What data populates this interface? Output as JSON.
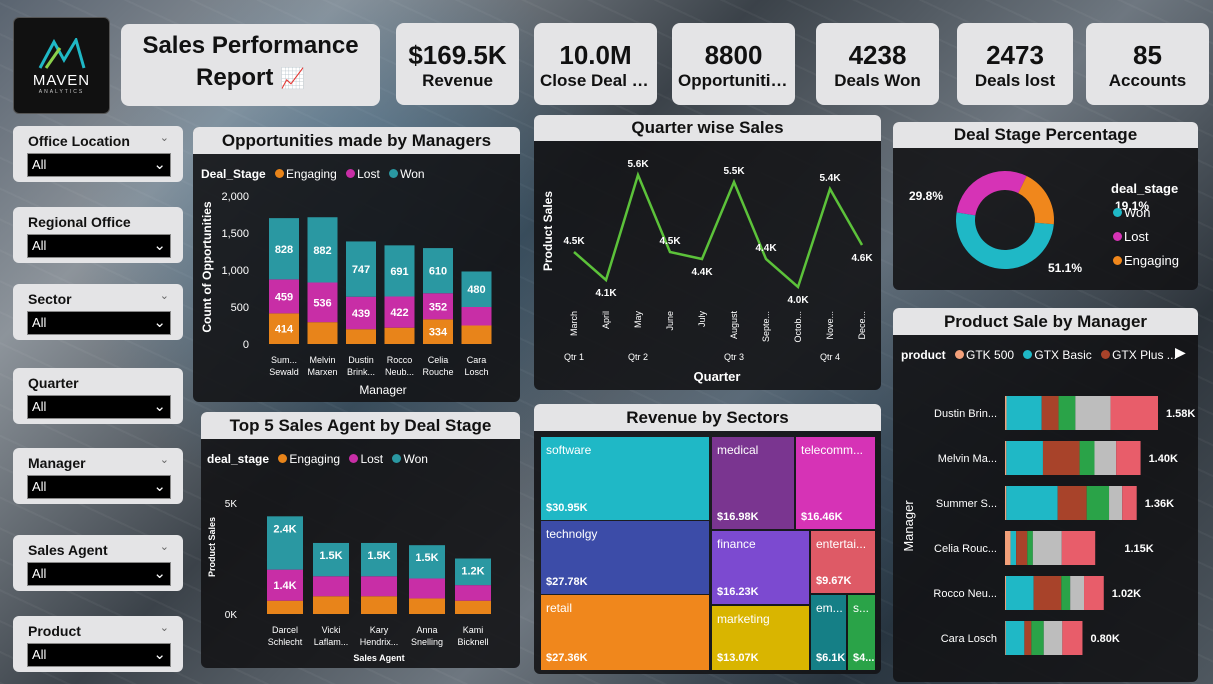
{
  "logo": {
    "name": "MAVEN",
    "sub": "ANALYTICS"
  },
  "title": {
    "line1": "Sales Performance",
    "line2": "Report",
    "emoji": "📈"
  },
  "kpis": [
    {
      "value": "$169.5K",
      "label": "Revenue"
    },
    {
      "value": "10.0M",
      "label": "Close Deal Value"
    },
    {
      "value": "8800",
      "label": "Opportunities"
    },
    {
      "value": "4238",
      "label": "Deals Won"
    },
    {
      "value": "2473",
      "label": "Deals lost"
    },
    {
      "value": "85",
      "label": "Accounts"
    }
  ],
  "slicers": [
    {
      "label": "Office Location",
      "value": "All"
    },
    {
      "label": "Regional Office",
      "value": "All"
    },
    {
      "label": "Sector",
      "value": "All"
    },
    {
      "label": "Quarter",
      "value": "All"
    },
    {
      "label": "Manager",
      "value": "All"
    },
    {
      "label": "Sales Agent",
      "value": "All"
    },
    {
      "label": "Product",
      "value": "All"
    }
  ],
  "colors": {
    "engaging": "#e8841a",
    "lost": "#c82ea6",
    "won": "#2a98a2",
    "line": "#5cc23a"
  },
  "opp": {
    "title": "Opportunities made by Managers",
    "legend_title": "Deal_Stage",
    "legend": [
      "Engaging",
      "Lost",
      "Won"
    ],
    "ylabel": "Count of Opportunities",
    "xlabel": "Manager",
    "yticks": [
      "2,000",
      "1,500",
      "1,000",
      "500",
      "0"
    ]
  },
  "quarter": {
    "title": "Quarter wise Sales",
    "ylabel": "Product Sales",
    "xlabel": "Quarter",
    "quarters": [
      "Qtr 1",
      "Qtr 2",
      "Qtr 3",
      "Qtr 4"
    ]
  },
  "donut": {
    "title": "Deal Stage Percentage",
    "legend_title": "deal_stage",
    "legend": [
      "Won",
      "Lost",
      "Engaging"
    ],
    "labels": {
      "won": "51.1%",
      "lost": "29.8%",
      "engaging": "19.1%"
    }
  },
  "agents": {
    "title": "Top 5 Sales Agent by Deal Stage",
    "legend_title": "deal_stage",
    "legend": [
      "Engaging",
      "Lost",
      "Won"
    ],
    "ylabel": "Product Sales",
    "xlabel": "Sales Agent",
    "yticks": [
      "5K",
      "0K"
    ]
  },
  "sectors": {
    "title": "Revenue by Sectors",
    "cells": [
      {
        "name": "software",
        "value": "$30.95K",
        "color": "#1fb8c6"
      },
      {
        "name": "technolgy",
        "value": "$27.78K",
        "color": "#3c4ca8"
      },
      {
        "name": "retail",
        "value": "$27.36K",
        "color": "#f0871c"
      },
      {
        "name": "medical",
        "value": "$16.98K",
        "color": "#7a3590"
      },
      {
        "name": "telecomm...",
        "value": "$16.46K",
        "color": "#d633b6"
      },
      {
        "name": "finance",
        "value": "$16.23K",
        "color": "#7c4ad0"
      },
      {
        "name": "entertai...",
        "value": "$9.67K",
        "color": "#de5a66"
      },
      {
        "name": "marketing",
        "value": "$13.07K",
        "color": "#d9b500"
      },
      {
        "name": "em...",
        "value": "$6.1K",
        "color": "#157f86"
      },
      {
        "name": "s...",
        "value": "$4...",
        "color": "#2aa348"
      }
    ]
  },
  "product": {
    "title": "Product Sale by Manager",
    "legend_title": "product",
    "legend": [
      {
        "name": "GTK 500",
        "color": "#f2a07a"
      },
      {
        "name": "GTX Basic",
        "color": "#1fb8c6"
      },
      {
        "name": "GTX Plus ...",
        "color": "#a8432a"
      }
    ],
    "ylabel": "Manager",
    "next_icon": "▶"
  },
  "chart_data": [
    {
      "type": "bar",
      "title": "Opportunities made by Managers",
      "xlabel": "Manager",
      "ylabel": "Count of Opportunities",
      "ylim": [
        0,
        2000
      ],
      "categories": [
        "Sum... Sewald",
        "Melvin Marxen",
        "Dustin Brink...",
        "Rocco Neub...",
        "Celia Rouche",
        "Cara Losch"
      ],
      "series": [
        {
          "name": "Engaging",
          "values": [
            414,
            295,
            200,
            220,
            334,
            250
          ]
        },
        {
          "name": "Lost",
          "values": [
            459,
            536,
            439,
            422,
            352,
            250
          ]
        },
        {
          "name": "Won",
          "values": [
            828,
            882,
            747,
            691,
            610,
            480
          ]
        }
      ],
      "data_labels": {
        "Engaging": [
          "414",
          "",
          "",
          "",
          "334",
          ""
        ],
        "Lost": [
          "459",
          "536",
          "439",
          "422",
          "352",
          ""
        ],
        "Won": [
          "828",
          "882",
          "747",
          "691",
          "610",
          "480"
        ]
      }
    },
    {
      "type": "line",
      "title": "Quarter wise Sales",
      "xlabel": "Quarter",
      "ylabel": "Product Sales",
      "x": [
        "March",
        "April",
        "May",
        "June",
        "July",
        "August",
        "Septe...",
        "Octob...",
        "Nove...",
        "Dece..."
      ],
      "values": [
        4500,
        4100,
        5600,
        4500,
        4400,
        5500,
        4400,
        4000,
        5400,
        4600
      ],
      "labels": [
        "4.5K",
        "4.1K",
        "5.6K",
        "4.5K",
        "4.4K",
        "5.5K",
        "4.4K",
        "4.0K",
        "5.4K",
        "4.6K"
      ]
    },
    {
      "type": "pie",
      "title": "Deal Stage Percentage",
      "categories": [
        "Won",
        "Lost",
        "Engaging"
      ],
      "values": [
        51.1,
        29.8,
        19.1
      ]
    },
    {
      "type": "bar",
      "title": "Top 5 Sales Agent by Deal Stage",
      "xlabel": "Sales Agent",
      "ylabel": "Product Sales",
      "ylim": [
        0,
        5000
      ],
      "categories": [
        "Darcel Schlecht",
        "Vicki Laflam...",
        "Kary Hendrix...",
        "Anna Snelling",
        "Kami Bicknell"
      ],
      "series": [
        {
          "name": "Engaging",
          "values": [
            600,
            800,
            800,
            700,
            600
          ]
        },
        {
          "name": "Lost",
          "values": [
            1400,
            900,
            900,
            900,
            700
          ]
        },
        {
          "name": "Won",
          "values": [
            2400,
            1500,
            1500,
            1500,
            1200
          ]
        }
      ],
      "data_labels": {
        "Lost": [
          "1.4K",
          "",
          "",
          "",
          ""
        ],
        "Won": [
          "2.4K",
          "1.5K",
          "1.5K",
          "1.5K",
          "1.2K"
        ]
      }
    },
    {
      "type": "table",
      "title": "Revenue by Sectors",
      "categories": [
        "software",
        "technolgy",
        "retail",
        "medical",
        "telecomm...",
        "finance",
        "entertai...",
        "marketing",
        "em...",
        "s..."
      ],
      "values": [
        30950,
        27780,
        27360,
        16980,
        16460,
        16230,
        9670,
        13070,
        6100,
        4000
      ]
    },
    {
      "type": "bar",
      "title": "Product Sale by Manager",
      "ylabel": "Manager",
      "categories": [
        "Dustin Brin...",
        "Melvin Ma...",
        "Summer S...",
        "Celia Rouc...",
        "Rocco Neu...",
        "Cara Losch"
      ],
      "values": [
        1580,
        1400,
        1360,
        1150,
        1020,
        800
      ],
      "labels": [
        "1.58K",
        "1.40K",
        "1.36K",
        "1.15K",
        "1.02K",
        "0.80K"
      ],
      "segment_colors": [
        "#f2a07a",
        "#1fb8c6",
        "#a8432a",
        "#2aa348",
        "#bdbdbd",
        "#e85d6a"
      ],
      "segments": [
        [
          0.01,
          0.23,
          0.11,
          0.11,
          0.23,
          0.31
        ],
        [
          0.01,
          0.27,
          0.27,
          0.11,
          0.16,
          0.18
        ],
        [
          0.01,
          0.39,
          0.22,
          0.17,
          0.1,
          0.11
        ],
        [
          0.05,
          0.05,
          0.1,
          0.05,
          0.26,
          0.3
        ],
        [
          0.01,
          0.28,
          0.28,
          0.09,
          0.14,
          0.2
        ],
        [
          0.01,
          0.24,
          0.09,
          0.16,
          0.24,
          0.26
        ]
      ]
    }
  ]
}
